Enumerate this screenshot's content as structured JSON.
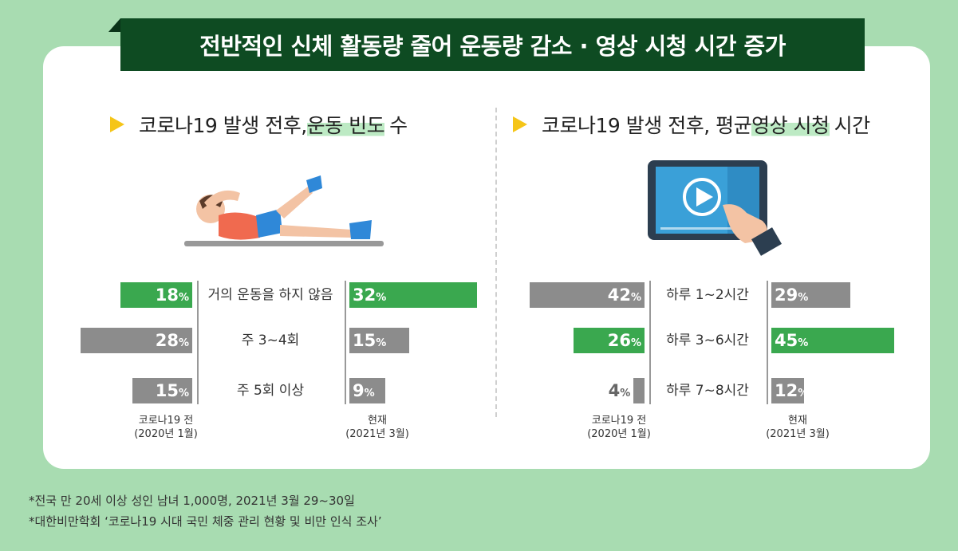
{
  "title": "전반적인 신체 활동량 줄어 운동량  감소 · 영상 시청 시간 증가",
  "chart_data": [
    {
      "type": "bar",
      "title_parts": [
        "코로나19 발생 전후, ",
        "운동 빈도",
        " 수"
      ],
      "categories": [
        "거의 운동을 하지 않음",
        "주 3~4회",
        "주 5회 이상"
      ],
      "unit": "%",
      "series": [
        {
          "name": "코로나19 전",
          "period": "(2020년 1월)",
          "values": [
            18,
            28,
            15
          ],
          "colors": [
            "#3aa84f",
            "#8c8c8c",
            "#8c8c8c"
          ]
        },
        {
          "name": "현재",
          "period": "(2021년 3월)",
          "values": [
            32,
            15,
            9
          ],
          "colors": [
            "#3aa84f",
            "#8c8c8c",
            "#8c8c8c"
          ]
        }
      ]
    },
    {
      "type": "bar",
      "title_parts": [
        "코로나19 발생 전후, 평균 ",
        "영상 시청",
        " 시간"
      ],
      "categories": [
        "하루 1~2시간",
        "하루 3~6시간",
        "하루 7~8시간"
      ],
      "unit": "%",
      "series": [
        {
          "name": "코로나19 전",
          "period": "(2020년 1월)",
          "values": [
            42,
            26,
            4
          ],
          "colors": [
            "#8c8c8c",
            "#3aa84f",
            "#8c8c8c"
          ]
        },
        {
          "name": "현재",
          "period": "(2021년 3월)",
          "values": [
            29,
            45,
            12
          ],
          "colors": [
            "#8c8c8c",
            "#3aa84f",
            "#8c8c8c"
          ]
        }
      ]
    }
  ],
  "footnotes": [
    "*전국 만 20세 이상 성인 남녀 1,000명, 2021년 3월 29~30일",
    "*대한비만학회 ‘코로나19 시대 국민 체중 관리 현황 및 비만 인식 조사’"
  ]
}
